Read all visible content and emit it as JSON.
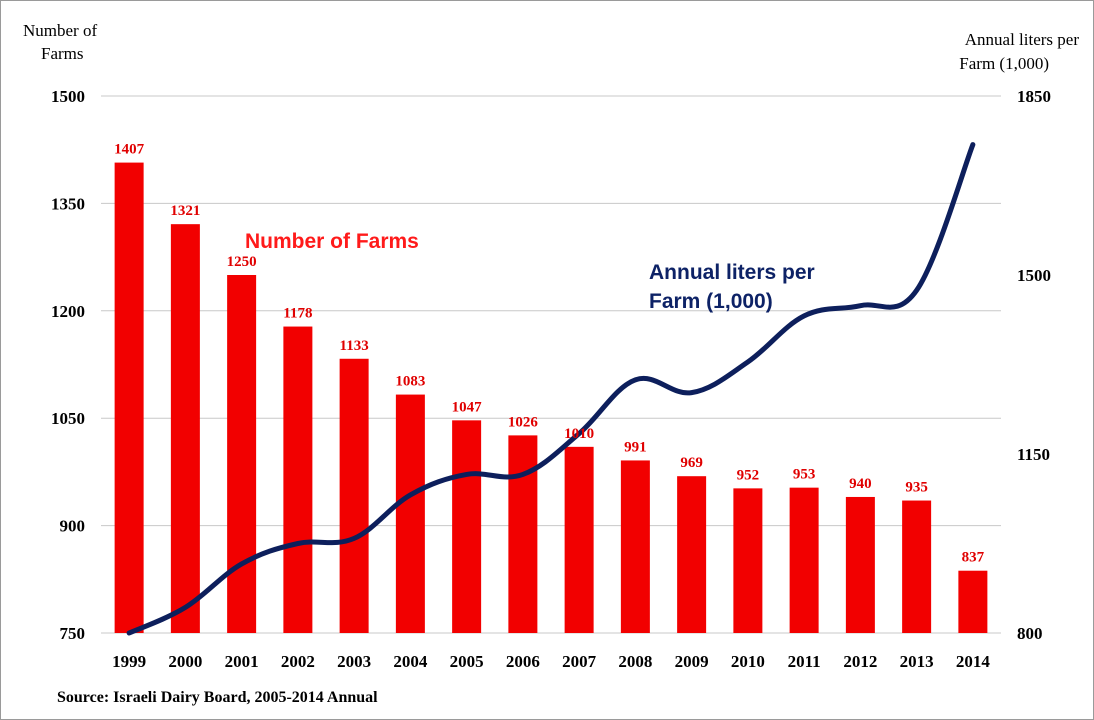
{
  "colors": {
    "bar": "#f20000",
    "bar_label": "#e00000",
    "line": "#0d1f5c",
    "gridline": "#c8c8c8",
    "axis_text": "#000000",
    "annotation_farms": "#ff1a1a",
    "annotation_liters": "#0d2266"
  },
  "chart_data": {
    "type": "bar",
    "categories": [
      "1999",
      "2000",
      "2001",
      "2002",
      "2003",
      "2004",
      "2005",
      "2006",
      "2007",
      "2008",
      "2009",
      "2010",
      "2011",
      "2012",
      "2013",
      "2014"
    ],
    "series": [
      {
        "name": "Number of Farms",
        "type": "bar",
        "axis": "left",
        "values": [
          1407,
          1321,
          1250,
          1178,
          1133,
          1083,
          1047,
          1026,
          1010,
          991,
          969,
          952,
          953,
          940,
          935,
          837
        ],
        "labels": [
          "1407",
          "1321",
          "1250",
          "1178",
          "1133",
          "1083",
          "1047",
          "1026",
          "1010",
          "991",
          "969",
          "952",
          "953",
          "940",
          "935",
          "837"
        ]
      },
      {
        "name": "Annual liters per Farm (1,000)",
        "type": "line",
        "axis": "right",
        "values": [
          800,
          850,
          935,
          975,
          985,
          1070,
          1110,
          1110,
          1190,
          1295,
          1270,
          1330,
          1420,
          1440,
          1470,
          1755
        ]
      }
    ],
    "y_left": {
      "label": [
        "Number of",
        "Farms"
      ],
      "ticks": [
        "750",
        "900",
        "1050",
        "1200",
        "1350",
        "1500"
      ],
      "lim": [
        750,
        1500
      ]
    },
    "y_right": {
      "label": [
        "Annual liters per",
        "Farm (1,000)"
      ],
      "ticks": [
        "800",
        "1150",
        "1500",
        "1850"
      ],
      "lim": [
        800,
        1850
      ]
    },
    "annotations": {
      "farms": "Number of Farms",
      "liters": [
        "Annual liters per",
        "Farm (1,000)"
      ]
    },
    "source": "Source: Israeli Dairy Board, 2005-2014 Annual",
    "grid": true,
    "legend": "none"
  }
}
